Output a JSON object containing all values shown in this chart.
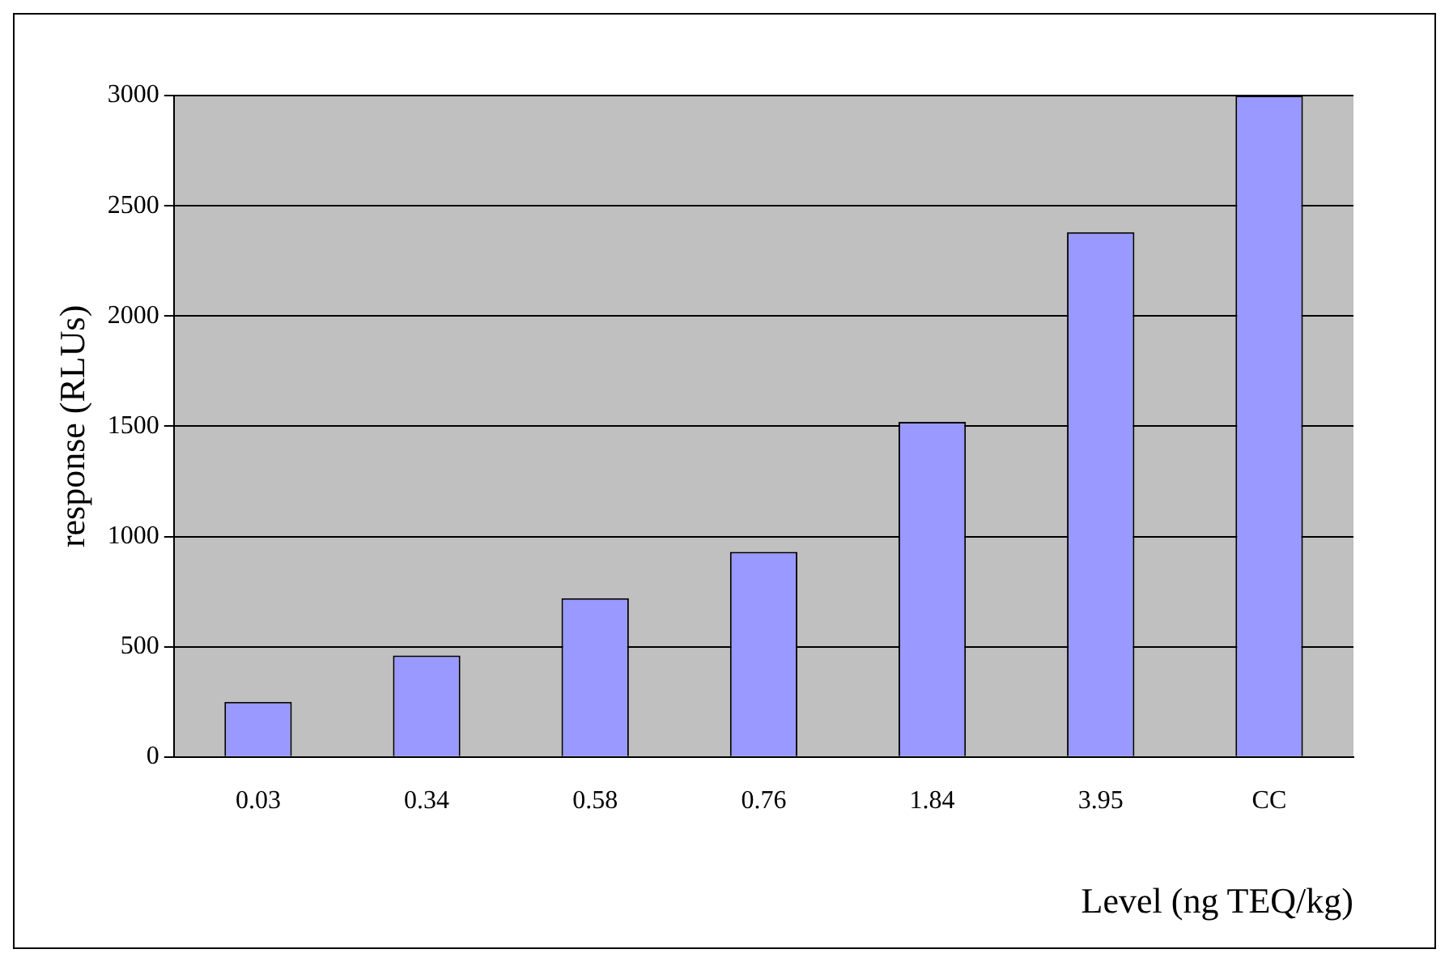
{
  "chart_data": {
    "type": "bar",
    "xlabel": "Level (ng TEQ/kg)",
    "ylabel": "response (RLUs)",
    "categories": [
      "0.03",
      "0.34",
      "0.58",
      "0.76",
      "1.84",
      "3.95",
      "CC"
    ],
    "values": [
      250,
      460,
      720,
      930,
      1520,
      2380,
      3000
    ],
    "color": "#9999ff",
    "ylim": [
      0,
      3000
    ],
    "yticks": [
      0,
      500,
      1000,
      1500,
      2000,
      2500,
      3000
    ],
    "grid": "y",
    "legend": false
  }
}
